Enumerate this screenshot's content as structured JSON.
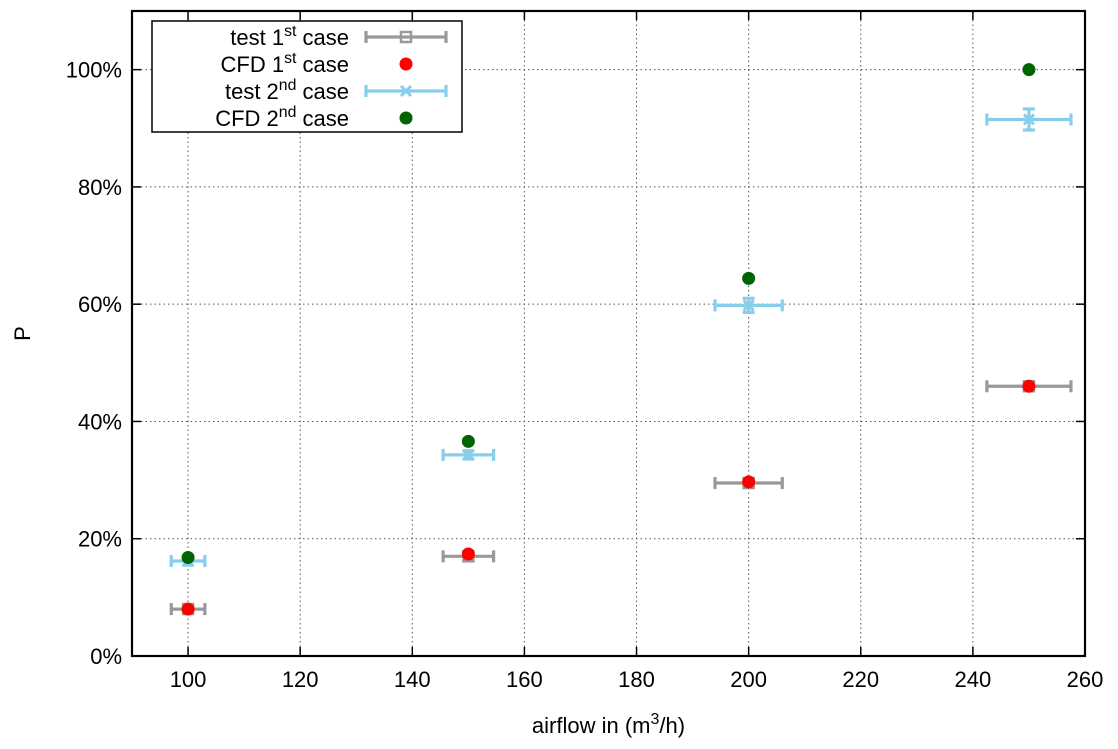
{
  "chart_data": {
    "type": "scatter",
    "xlabel": "airflow in (m³/h)",
    "xlabel_parts": {
      "base": "airflow in (m",
      "sup": "3",
      "end": "/h)"
    },
    "ylabel": "P",
    "xlim": [
      90,
      260
    ],
    "ylim": [
      0,
      1.1
    ],
    "x_ticks": [
      100,
      120,
      140,
      160,
      180,
      200,
      220,
      240,
      260
    ],
    "y_ticks": [
      0,
      0.2,
      0.4,
      0.6,
      0.8,
      1.0
    ],
    "x_tick_labels": [
      "100",
      "120",
      "140",
      "160",
      "180",
      "200",
      "220",
      "240",
      "260"
    ],
    "y_tick_labels": [
      "0%",
      "20%",
      "40%",
      "60%",
      "80%",
      "100%"
    ],
    "grid": true,
    "legend_position": "top-left",
    "series": [
      {
        "name": "test 1st case",
        "legend_base": "test 1",
        "legend_sup": "st",
        "legend_end": " case",
        "color": "#999999",
        "marker": "square",
        "x": [
          100,
          150,
          200,
          250
        ],
        "y": [
          0.08,
          0.17,
          0.295,
          0.46
        ],
        "x_err": [
          3,
          4.5,
          6,
          7.5
        ],
        "y_err": [
          0.007,
          0.007,
          0.007,
          0.007
        ]
      },
      {
        "name": "CFD 1st case",
        "legend_base": "CFD 1",
        "legend_sup": "st",
        "legend_end": " case",
        "color": "#ff0000",
        "marker": "circle",
        "x": [
          100,
          150,
          200,
          250
        ],
        "y": [
          0.08,
          0.174,
          0.297,
          0.46
        ]
      },
      {
        "name": "test 2nd case",
        "legend_base": "test 2",
        "legend_sup": "nd",
        "legend_end": " case",
        "color": "#87ceeb",
        "marker": "cross",
        "x": [
          100,
          150,
          200,
          250
        ],
        "y": [
          0.162,
          0.343,
          0.598,
          0.915
        ],
        "x_err": [
          3,
          4.5,
          6,
          7.5
        ],
        "y_err": [
          0.007,
          0.007,
          0.012,
          0.018
        ]
      },
      {
        "name": "CFD 2nd case",
        "legend_base": "CFD 2",
        "legend_sup": "nd",
        "legend_end": " case",
        "color": "#006400",
        "marker": "circle",
        "x": [
          100,
          150,
          200,
          250
        ],
        "y": [
          0.168,
          0.366,
          0.644,
          1.0
        ]
      }
    ]
  }
}
